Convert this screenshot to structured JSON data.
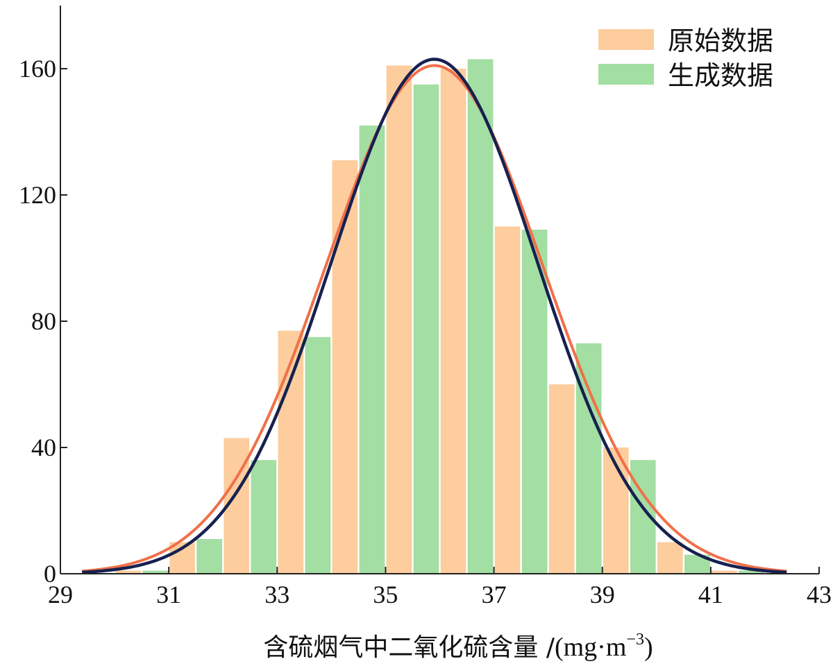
{
  "chart_data": {
    "type": "bar",
    "title": "",
    "xlabel": "含硫烟气中二氧化硫含量 /",
    "xlabel_unit": "(mg·m",
    "xlabel_unit_sup": "−3",
    "xlabel_unit_close": ")",
    "ylabel": "",
    "xlim": [
      29,
      43
    ],
    "ylim": [
      0,
      180
    ],
    "x_ticks": [
      "29",
      "31",
      "33",
      "35",
      "37",
      "39",
      "41",
      "43"
    ],
    "y_ticks": [
      "0",
      "40",
      "80",
      "120",
      "160"
    ],
    "grid": false,
    "legend_position": "top-right",
    "series": [
      {
        "name": "原始数据",
        "color": "#fdcd9e",
        "x": [
          30.5,
          31.5,
          32.5,
          33.5,
          34.5,
          35.5,
          36.5,
          37.5,
          38.5,
          39.5,
          40.5,
          41.5
        ],
        "values": [
          1,
          10,
          43,
          77,
          131,
          161,
          160,
          110,
          60,
          40,
          10,
          1
        ]
      },
      {
        "name": "生成数据",
        "color": "#a3dea3",
        "x": [
          30.5,
          31.5,
          32.5,
          33.5,
          34.5,
          35.5,
          36.5,
          37.5,
          38.5,
          39.5,
          40.5,
          41.5
        ],
        "values": [
          1,
          11,
          36,
          75,
          142,
          155,
          163,
          109,
          73,
          36,
          6,
          1
        ]
      }
    ],
    "curves": [
      {
        "color": "#f0704a",
        "mean": 35.9,
        "sd": 2.0,
        "peak": 161
      },
      {
        "color": "#162150",
        "mean": 35.9,
        "sd": 1.9,
        "peak": 163
      }
    ]
  }
}
